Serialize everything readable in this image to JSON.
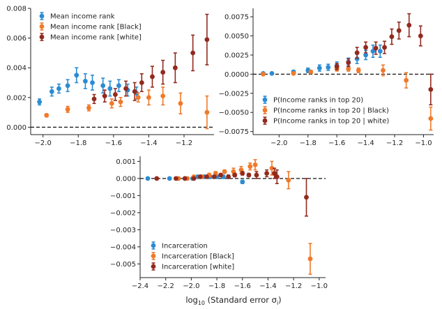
{
  "chart_data": [
    {
      "id": "panel-income-rank",
      "type": "scatter",
      "error_bars": true,
      "xlim": [
        -2.07,
        -1.03
      ],
      "ylim": [
        -0.0005,
        0.008
      ],
      "xticks": [
        -2.0,
        -1.8,
        -1.6,
        -1.4,
        -1.2
      ],
      "xtick_labels": [
        "−2.0",
        "−1.8",
        "−1.6",
        "−1.4",
        "−1.2"
      ],
      "yticks": [
        0,
        0.002,
        0.004,
        0.006,
        0.008
      ],
      "ytick_labels": [
        "0.000",
        "0.002",
        "0.004",
        "0.006",
        "0.008"
      ],
      "reference_line": 0,
      "legend_position": "top-left",
      "series": [
        {
          "name": "Mean income rank",
          "color": "#2b8cd2",
          "x": [
            -2.02,
            -1.95,
            -1.91,
            -1.86,
            -1.81,
            -1.76,
            -1.72,
            -1.66,
            -1.62,
            -1.57,
            -1.52,
            -1.47
          ],
          "y": [
            0.0017,
            0.0024,
            0.0026,
            0.0028,
            0.0035,
            0.0031,
            0.003,
            0.0028,
            0.0026,
            0.0028,
            0.0025,
            0.0023
          ],
          "err": [
            0.0002,
            0.0003,
            0.0003,
            0.0004,
            0.0005,
            0.0005,
            0.0005,
            0.0005,
            0.0005,
            0.0004,
            0.0004,
            0.0004
          ]
        },
        {
          "name": "Mean income rank [Black]",
          "color": "#f07a2a",
          "x": [
            -1.98,
            -1.86,
            -1.74,
            -1.61,
            -1.56,
            -1.46,
            -1.4,
            -1.32,
            -1.22,
            -1.07
          ],
          "y": [
            0.0008,
            0.0012,
            0.0013,
            0.0016,
            0.0017,
            0.002,
            0.002,
            0.0021,
            0.0016,
            0.001
          ],
          "err": [
            0.0001,
            0.0002,
            0.0002,
            0.0003,
            0.0003,
            0.0003,
            0.0005,
            0.0006,
            0.0007,
            0.0011
          ]
        },
        {
          "name": "Mean income rank [white]",
          "color": "#922a1e",
          "x": [
            -1.71,
            -1.65,
            -1.59,
            -1.53,
            -1.48,
            -1.44,
            -1.38,
            -1.32,
            -1.25,
            -1.15,
            -1.07
          ],
          "y": [
            0.0019,
            0.0021,
            0.0022,
            0.0026,
            0.0024,
            0.003,
            0.0034,
            0.0037,
            0.004,
            0.005,
            0.0059
          ],
          "err": [
            0.0003,
            0.0004,
            0.0004,
            0.0005,
            0.0006,
            0.0006,
            0.0007,
            0.0008,
            0.001,
            0.0012,
            0.0017
          ]
        }
      ]
    },
    {
      "id": "panel-top20",
      "type": "scatter",
      "error_bars": true,
      "xlim": [
        -2.18,
        -0.93
      ],
      "ylim": [
        -0.0079,
        0.0086
      ],
      "xticks": [
        -2.0,
        -1.8,
        -1.6,
        -1.4,
        -1.2,
        -1.0
      ],
      "xtick_labels": [
        "−2.0",
        "−1.8",
        "−1.6",
        "−1.4",
        "−1.2",
        "−1.0"
      ],
      "yticks": [
        -0.0075,
        -0.005,
        -0.0025,
        0,
        0.0025,
        0.005,
        0.0075
      ],
      "ytick_labels": [
        "−0.0075",
        "−0.0050",
        "−0.0025",
        "0.0000",
        "0.0025",
        "0.0050",
        "0.0075"
      ],
      "reference_line": 0,
      "legend_position": "bottom-left",
      "series": [
        {
          "name": "P(Income ranks in top 20)",
          "color": "#2b8cd2",
          "x": [
            -2.11,
            -2.05,
            -1.9,
            -1.8,
            -1.72,
            -1.66,
            -1.6,
            -1.52,
            -1.46,
            -1.4,
            -1.35,
            -1.3
          ],
          "y": [
            0.0001,
            0.0001,
            0.0003,
            0.0005,
            0.0008,
            0.0009,
            0.0011,
            0.0016,
            0.002,
            0.0025,
            0.003,
            0.003
          ],
          "err": [
            0.0001,
            0.0001,
            0.0002,
            0.0003,
            0.0004,
            0.0004,
            0.0005,
            0.0005,
            0.0006,
            0.0006,
            0.0008,
            0.0008
          ]
        },
        {
          "name": "P(Income ranks in top 20 | Black)",
          "color": "#f07a2a",
          "x": [
            -2.11,
            -1.9,
            -1.78,
            -1.6,
            -1.52,
            -1.45,
            -1.28,
            -1.12,
            -0.95
          ],
          "y": [
            0.0,
            0.0001,
            0.0003,
            0.0007,
            0.0007,
            0.0005,
            0.0005,
            -0.0008,
            -0.0058
          ],
          "err": [
            0.0001,
            0.0001,
            0.0002,
            0.0003,
            0.0003,
            0.0003,
            0.0007,
            0.001,
            0.0015
          ]
        },
        {
          "name": "P(Income ranks in top 20 | white)",
          "color": "#922a1e",
          "x": [
            -1.6,
            -1.52,
            -1.46,
            -1.4,
            -1.33,
            -1.27,
            -1.22,
            -1.17,
            -1.1,
            -1.02,
            -0.95
          ],
          "y": [
            0.001,
            0.0015,
            0.0028,
            0.0035,
            0.0034,
            0.0035,
            0.0049,
            0.0057,
            0.0064,
            0.005,
            -0.002
          ],
          "err": [
            0.0004,
            0.0005,
            0.0007,
            0.0007,
            0.0008,
            0.0008,
            0.001,
            0.0011,
            0.0015,
            0.0013,
            0.002
          ]
        }
      ]
    },
    {
      "id": "panel-incarceration",
      "type": "scatter",
      "error_bars": true,
      "xlim": [
        -2.4,
        -0.95
      ],
      "ylim": [
        -0.0058,
        0.0013
      ],
      "xticks": [
        -2.4,
        -2.2,
        -2.0,
        -1.8,
        -1.6,
        -1.4,
        -1.2,
        -1.0
      ],
      "xtick_labels": [
        "−2.4",
        "−2.2",
        "−2.0",
        "−1.8",
        "−1.6",
        "−1.4",
        "−1.2",
        "−1.0"
      ],
      "yticks": [
        -0.005,
        -0.004,
        -0.003,
        -0.002,
        -0.001,
        0,
        0.001
      ],
      "ytick_labels": [
        "−0.005",
        "−0.004",
        "−0.003",
        "−0.002",
        "−0.001",
        "0.000",
        "0.001"
      ],
      "xlabel": "log",
      "xlabel_subscript": "10",
      "xlabel_rest": " (Standard error σ",
      "xlabel_sub_i": "i",
      "xlabel_close": ")",
      "reference_line": 0,
      "legend_position": "bottom-left",
      "series": [
        {
          "name": "Incarceration",
          "color": "#2b8cd2",
          "x": [
            -2.34,
            -2.17,
            -2.1,
            -2.05,
            -1.99,
            -1.95,
            -1.9,
            -1.85,
            -1.8,
            -1.75,
            -1.71,
            -1.6
          ],
          "y": [
            0.0,
            0.0,
            0.0,
            0.0,
            0.0,
            0.0001,
            0.0001,
            0.0001,
            0.0001,
            0.0001,
            0.0001,
            -0.0002
          ],
          "err": [
            5e-05,
            5e-05,
            5e-05,
            5e-05,
            6e-05,
            6e-05,
            7e-05,
            7e-05,
            8e-05,
            9e-05,
            0.0001,
            0.0001
          ]
        },
        {
          "name": "Incarceration [Black]",
          "color": "#f07a2a",
          "x": [
            -2.1,
            -2.03,
            -1.98,
            -1.92,
            -1.86,
            -1.81,
            -1.74,
            -1.67,
            -1.61,
            -1.54,
            -1.5,
            -1.37,
            -1.24,
            -1.07
          ],
          "y": [
            0.0,
            0.0,
            0.0001,
            0.0001,
            0.0002,
            0.0003,
            0.0004,
            0.0004,
            0.0005,
            0.0007,
            0.0008,
            0.0006,
            -0.0001,
            -0.0047
          ],
          "err": [
            5e-05,
            5e-05,
            7e-05,
            8e-05,
            0.0001,
            0.0001,
            0.0001,
            0.0002,
            0.0002,
            0.0002,
            0.0003,
            0.0004,
            0.0005,
            0.0009
          ]
        },
        {
          "name": "Incarceration [white]",
          "color": "#922a1e",
          "x": [
            -2.27,
            -2.12,
            -2.05,
            -1.98,
            -1.93,
            -1.88,
            -1.82,
            -1.77,
            -1.71,
            -1.66,
            -1.6,
            -1.55,
            -1.49,
            -1.41,
            -1.35,
            -1.33,
            -1.1
          ],
          "y": [
            0.0,
            0.0,
            0.0,
            0.0,
            0.0001,
            0.0001,
            0.0001,
            0.0002,
            0.0001,
            0.0002,
            0.0003,
            0.0002,
            0.0002,
            0.0003,
            0.0003,
            0.0001,
            -0.0011
          ],
          "err": [
            4e-05,
            5e-05,
            5e-05,
            5e-05,
            6e-05,
            6e-05,
            7e-05,
            8e-05,
            9e-05,
            0.0001,
            0.0001,
            0.0001,
            0.0002,
            0.0002,
            0.0003,
            0.0004,
            0.0011
          ]
        }
      ]
    }
  ]
}
